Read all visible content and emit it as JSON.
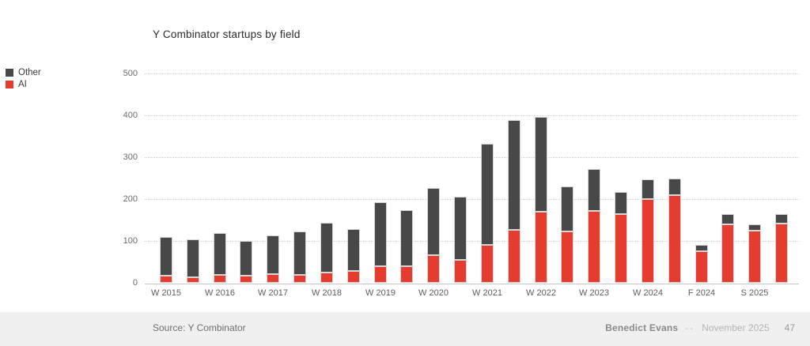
{
  "slide": {
    "footer": {
      "source": "Source: Y Combinator",
      "author": "Benedict Evans",
      "separator": "--",
      "date": "November 2025",
      "page": "47"
    }
  },
  "chart_data": {
    "type": "bar",
    "stacked": true,
    "title": "Y Combinator startups by field",
    "xlabel": "",
    "ylabel": "",
    "ylim": [
      0,
      500
    ],
    "yticks": [
      0,
      100,
      200,
      300,
      400,
      500
    ],
    "grid": "horizontal dotted gridlines",
    "legend_position": "left",
    "legend": [
      {
        "name": "Other",
        "color": "#484848"
      },
      {
        "name": "AI",
        "color": "#e63c2f"
      }
    ],
    "x_tick_labels": [
      "W 2015",
      "W 2016",
      "W 2017",
      "W 2018",
      "W 2019",
      "W 2020",
      "W 2021",
      "W 2022",
      "W 2023",
      "W 2024",
      "F 2024",
      "S 2025"
    ],
    "x_tick_bar_indices": [
      0,
      2,
      4,
      6,
      8,
      10,
      12,
      14,
      16,
      18,
      20,
      22
    ],
    "bars_per_label": 2,
    "bar_count": 24,
    "series": [
      {
        "name": "AI",
        "color": "#e63c2f",
        "values": [
          18,
          15,
          20,
          18,
          22,
          20,
          25,
          30,
          41,
          41,
          66,
          55,
          92,
          128,
          170,
          123,
          172,
          165,
          200,
          210,
          77,
          140,
          126,
          143
        ]
      },
      {
        "name": "Other",
        "color": "#484848",
        "values": [
          92,
          89,
          100,
          82,
          92,
          103,
          119,
          99,
          152,
          133,
          160,
          151,
          240,
          260,
          227,
          108,
          100,
          53,
          48,
          40,
          15,
          25,
          14,
          22
        ]
      }
    ]
  }
}
